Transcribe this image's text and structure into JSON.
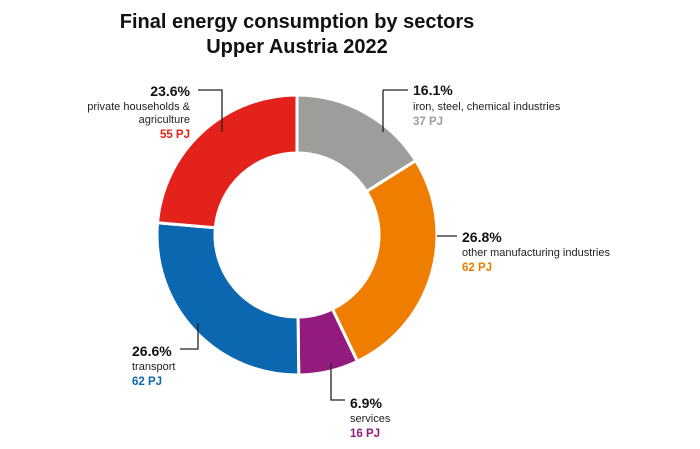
{
  "chart_data": {
    "type": "pie",
    "variant": "donut",
    "title": [
      "Final energy consumption by sectors",
      "Upper Austria 2022"
    ],
    "start_angle": "top, clockwise",
    "unit": "PJ",
    "slices": [
      {
        "label_lines": [
          "iron, steel, chemical industries"
        ],
        "percent": 16.1,
        "percent_text": "16.1%",
        "value": 37,
        "value_text": "37 PJ",
        "color": "#9d9d9c"
      },
      {
        "label_lines": [
          "other manufacturing industries"
        ],
        "percent": 26.8,
        "percent_text": "26.8%",
        "value": 62,
        "value_text": "62 PJ",
        "color": "#ef7d00"
      },
      {
        "label_lines": [
          "services"
        ],
        "percent": 6.9,
        "percent_text": "6.9%",
        "value": 16,
        "value_text": "16 PJ",
        "color": "#931b7e"
      },
      {
        "label_lines": [
          "transport"
        ],
        "percent": 26.6,
        "percent_text": "26.6%",
        "value": 62,
        "value_text": "62 PJ",
        "color": "#0a67b0"
      },
      {
        "label_lines": [
          "private households &",
          "agriculture"
        ],
        "percent": 23.6,
        "percent_text": "23.6%",
        "value": 55,
        "value_text": "55 PJ",
        "color": "#e3231b"
      }
    ]
  }
}
